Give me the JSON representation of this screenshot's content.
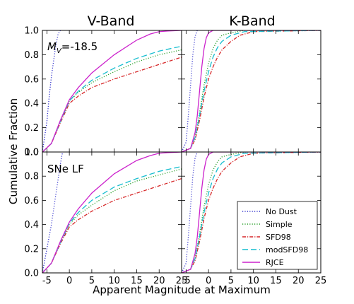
{
  "figure": {
    "col_titles": [
      "V-Band",
      "K-Band"
    ],
    "ylabel": "Cumulative Fraction",
    "xlabel": "Apparent Magnitude at Maximum",
    "annotations": {
      "top_left_prefix": "M",
      "top_left_sub": "V",
      "top_left_value": "=-18.5",
      "bottom_left": "SNe LF"
    }
  },
  "chart_data": {
    "type": "line",
    "xlim": [
      -6,
      25
    ],
    "ylim": [
      0,
      1
    ],
    "xticks": [
      -5,
      0,
      5,
      10,
      15,
      20,
      25
    ],
    "yticks": [
      0.0,
      0.2,
      0.4,
      0.6,
      0.8,
      1.0
    ],
    "ytick_labels": [
      "0.0",
      "0.2",
      "0.4",
      "0.6",
      "0.8",
      "1.0"
    ],
    "legend": {
      "location": "lower-right of bottom-right panel"
    },
    "series_styles": [
      {
        "name": "No Dust",
        "color": "#3333cc",
        "dash": "1.2,2.2"
      },
      {
        "name": "Simple",
        "color": "#2ca02c",
        "dash": "1.2,2.2"
      },
      {
        "name": "SFD98",
        "color": "#d62728",
        "dash": "5,2,1.2,2"
      },
      {
        "name": "modSFD98",
        "color": "#17becf",
        "dash": "8,4"
      },
      {
        "name": "RJCE",
        "color": "#cc22cc",
        "dash": ""
      }
    ],
    "panels": [
      {
        "id": "V-top",
        "series": [
          {
            "name": "No Dust",
            "x": [
              -6,
              -5,
              -4.5,
              -4,
              -3.5,
              -3,
              -2.5,
              -2
            ],
            "y": [
              0.0,
              0.25,
              0.45,
              0.62,
              0.75,
              0.88,
              0.97,
              1.0
            ]
          },
          {
            "name": "Simple",
            "x": [
              -6,
              -4,
              -2,
              0,
              2,
              5,
              10,
              15,
              20,
              25
            ],
            "y": [
              0.0,
              0.07,
              0.25,
              0.42,
              0.49,
              0.57,
              0.66,
              0.74,
              0.8,
              0.84
            ]
          },
          {
            "name": "SFD98",
            "x": [
              -6,
              -4,
              -2,
              0,
              2,
              5,
              10,
              15,
              20,
              25
            ],
            "y": [
              0.0,
              0.07,
              0.24,
              0.4,
              0.46,
              0.53,
              0.6,
              0.66,
              0.72,
              0.78
            ]
          },
          {
            "name": "modSFD98",
            "x": [
              -6,
              -4,
              -2,
              0,
              2,
              5,
              10,
              15,
              20,
              25
            ],
            "y": [
              0.0,
              0.07,
              0.25,
              0.42,
              0.5,
              0.59,
              0.69,
              0.77,
              0.83,
              0.87
            ]
          },
          {
            "name": "RJCE",
            "x": [
              -6,
              -4,
              -2,
              0,
              2,
              5,
              10,
              15,
              18,
              20,
              22,
              25
            ],
            "y": [
              0.0,
              0.07,
              0.26,
              0.43,
              0.53,
              0.65,
              0.8,
              0.92,
              0.97,
              0.99,
              0.995,
              1.0
            ]
          }
        ]
      },
      {
        "id": "K-top",
        "series": [
          {
            "name": "No Dust",
            "x": [
              -6,
              -5,
              -4.5,
              -4,
              -3.5,
              -3,
              -2.5
            ],
            "y": [
              0.0,
              0.08,
              0.3,
              0.55,
              0.8,
              0.95,
              1.0
            ]
          },
          {
            "name": "Simple",
            "x": [
              -6,
              -4,
              -3,
              -2,
              -1,
              0,
              1,
              2,
              3,
              5,
              8,
              25
            ],
            "y": [
              0.0,
              0.03,
              0.12,
              0.32,
              0.55,
              0.73,
              0.85,
              0.92,
              0.96,
              0.98,
              1.0,
              1.0
            ]
          },
          {
            "name": "SFD98",
            "x": [
              -6,
              -4,
              -3,
              -2,
              -1,
              0,
              1,
              2,
              3,
              5,
              7,
              10,
              25
            ],
            "y": [
              0.0,
              0.03,
              0.1,
              0.26,
              0.45,
              0.6,
              0.7,
              0.78,
              0.84,
              0.91,
              0.96,
              0.99,
              1.0
            ]
          },
          {
            "name": "modSFD98",
            "x": [
              -6,
              -4,
              -3,
              -2,
              -1,
              0,
              1,
              2,
              3,
              5,
              8,
              25
            ],
            "y": [
              0.0,
              0.03,
              0.12,
              0.3,
              0.5,
              0.66,
              0.78,
              0.86,
              0.91,
              0.96,
              0.99,
              1.0
            ]
          },
          {
            "name": "RJCE",
            "x": [
              -6,
              -4,
              -3,
              -2.5,
              -2,
              -1.5,
              -1,
              -0.5,
              0,
              1,
              25
            ],
            "y": [
              0.0,
              0.03,
              0.16,
              0.3,
              0.5,
              0.7,
              0.85,
              0.94,
              0.98,
              1.0,
              1.0
            ]
          }
        ]
      },
      {
        "id": "V-bottom",
        "series": [
          {
            "name": "No Dust",
            "x": [
              -6,
              -5,
              -4,
              -3,
              -2,
              -1.5
            ],
            "y": [
              0.0,
              0.2,
              0.4,
              0.65,
              0.9,
              1.0
            ]
          },
          {
            "name": "Simple",
            "x": [
              -6,
              -4,
              -2,
              0,
              2,
              5,
              10,
              15,
              20,
              25
            ],
            "y": [
              0.0,
              0.08,
              0.25,
              0.4,
              0.48,
              0.56,
              0.68,
              0.76,
              0.81,
              0.86
            ]
          },
          {
            "name": "SFD98",
            "x": [
              -6,
              -4,
              -2,
              0,
              2,
              5,
              10,
              15,
              20,
              25
            ],
            "y": [
              0.0,
              0.08,
              0.24,
              0.38,
              0.44,
              0.51,
              0.6,
              0.66,
              0.72,
              0.78
            ]
          },
          {
            "name": "modSFD98",
            "x": [
              -6,
              -4,
              -2,
              0,
              2,
              5,
              10,
              15,
              20,
              25
            ],
            "y": [
              0.0,
              0.08,
              0.25,
              0.41,
              0.5,
              0.6,
              0.71,
              0.78,
              0.84,
              0.88
            ]
          },
          {
            "name": "RJCE",
            "x": [
              -6,
              -4,
              -2,
              0,
              2,
              5,
              10,
              15,
              18,
              20,
              22,
              25
            ],
            "y": [
              0.0,
              0.08,
              0.26,
              0.42,
              0.53,
              0.66,
              0.82,
              0.93,
              0.97,
              0.99,
              0.995,
              1.0
            ]
          }
        ]
      },
      {
        "id": "K-bottom",
        "series": [
          {
            "name": "No Dust",
            "x": [
              -6,
              -5,
              -4.5,
              -4,
              -3.5,
              -3,
              -2.5
            ],
            "y": [
              0.0,
              0.08,
              0.3,
              0.55,
              0.8,
              0.95,
              1.0
            ]
          },
          {
            "name": "Simple",
            "x": [
              -6,
              -4,
              -3,
              -2,
              -1,
              0,
              1,
              2,
              3,
              5,
              8,
              25
            ],
            "y": [
              0.0,
              0.03,
              0.12,
              0.32,
              0.55,
              0.73,
              0.85,
              0.92,
              0.96,
              0.98,
              1.0,
              1.0
            ]
          },
          {
            "name": "SFD98",
            "x": [
              -6,
              -4,
              -3,
              -2,
              -1,
              0,
              1,
              2,
              3,
              5,
              7,
              10,
              25
            ],
            "y": [
              0.0,
              0.03,
              0.1,
              0.26,
              0.45,
              0.6,
              0.7,
              0.78,
              0.84,
              0.91,
              0.96,
              0.99,
              1.0
            ]
          },
          {
            "name": "modSFD98",
            "x": [
              -6,
              -4,
              -3,
              -2,
              -1,
              0,
              1,
              2,
              3,
              5,
              8,
              25
            ],
            "y": [
              0.0,
              0.03,
              0.12,
              0.3,
              0.5,
              0.66,
              0.78,
              0.86,
              0.91,
              0.96,
              0.99,
              1.0
            ]
          },
          {
            "name": "RJCE",
            "x": [
              -6,
              -4,
              -3,
              -2.5,
              -2,
              -1.5,
              -1,
              -0.5,
              0,
              1,
              25
            ],
            "y": [
              0.0,
              0.03,
              0.16,
              0.3,
              0.5,
              0.7,
              0.85,
              0.94,
              0.98,
              1.0,
              1.0
            ]
          }
        ]
      }
    ]
  }
}
